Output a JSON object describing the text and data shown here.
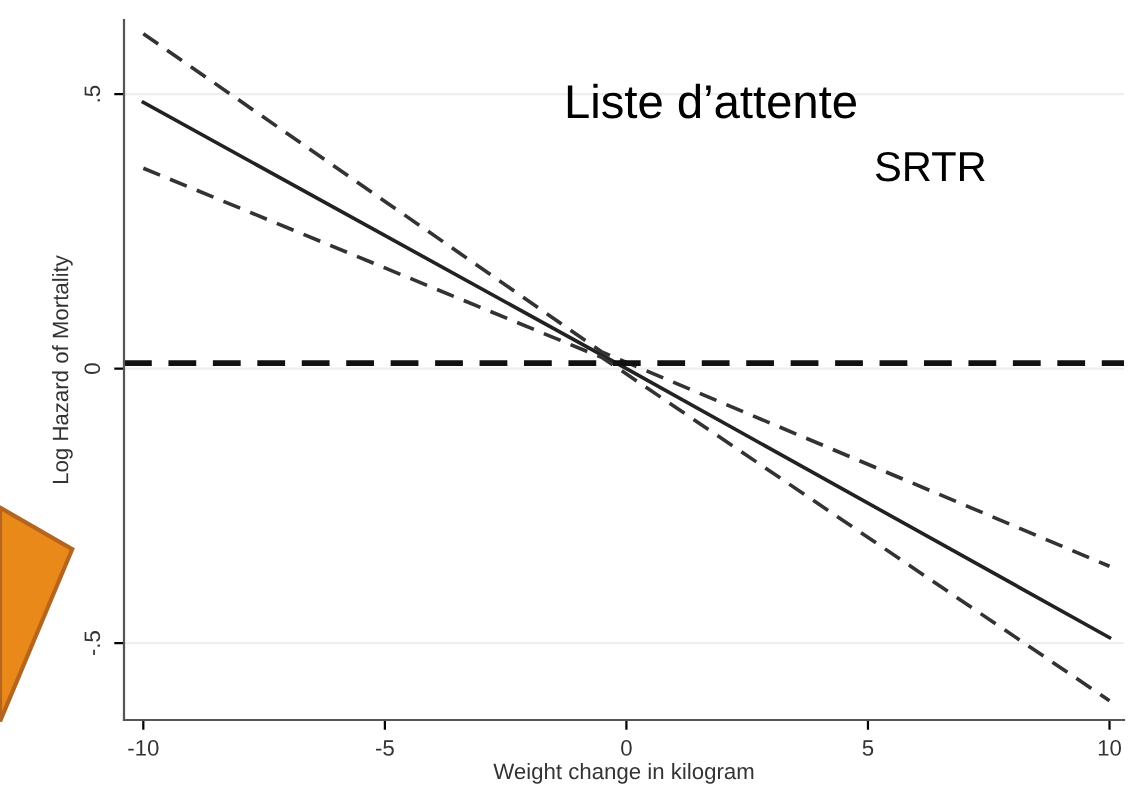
{
  "chart_data": {
    "type": "line",
    "xlabel": "Weight change in kilogram",
    "ylabel": "Log Hazard of Mortality",
    "annotations": [
      "Liste d’attente",
      "SRTR"
    ],
    "series": [
      {
        "x": [
          -10,
          0,
          10
        ],
        "values": [
          0.485,
          0.0,
          -0.49
        ],
        "color": "#222222",
        "line_style": "solid"
      },
      {
        "x": [
          -10,
          -0.5,
          10
        ],
        "values": [
          0.61,
          0.03,
          -0.36
        ],
        "color": "#333333",
        "line_style": "dashed"
      },
      {
        "x": [
          -10,
          -0.5,
          10
        ],
        "values": [
          0.365,
          0.02,
          -0.605
        ],
        "color": "#333333",
        "line_style": "dashed"
      }
    ],
    "ref_lines": [
      {
        "axis": "y",
        "value": 0.01,
        "color": "#111111",
        "line_style": "dashed"
      }
    ],
    "xlim": [
      -10.4,
      10.3
    ],
    "ylim": [
      -0.64,
      0.635
    ],
    "xticks": [
      -10,
      -5,
      0,
      5,
      10
    ],
    "yticks": [
      {
        "value": -0.5,
        "label": "-.5"
      },
      0,
      {
        "value": 0.5,
        "label": ".5"
      }
    ],
    "grid": "y",
    "marker": "none"
  }
}
